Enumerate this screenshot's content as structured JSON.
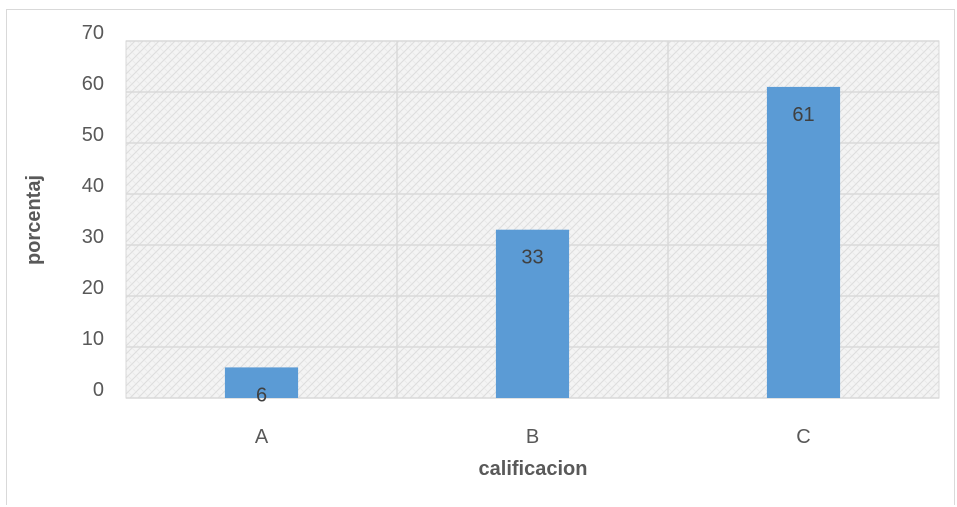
{
  "chart_data": {
    "type": "bar",
    "categories": [
      "A",
      "B",
      "C"
    ],
    "values": [
      6,
      33,
      61
    ],
    "data_labels": [
      "6",
      "33",
      "61"
    ],
    "xlabel": "calificacion",
    "ylabel": "porcentaj",
    "ylim": [
      0,
      70
    ],
    "yticks": [
      "0",
      "10",
      "20",
      "30",
      "40",
      "50",
      "60",
      "70"
    ],
    "grid": true,
    "legend": "none",
    "bar_color": "#5b9bd5",
    "plot_background": "patterned light gray"
  }
}
